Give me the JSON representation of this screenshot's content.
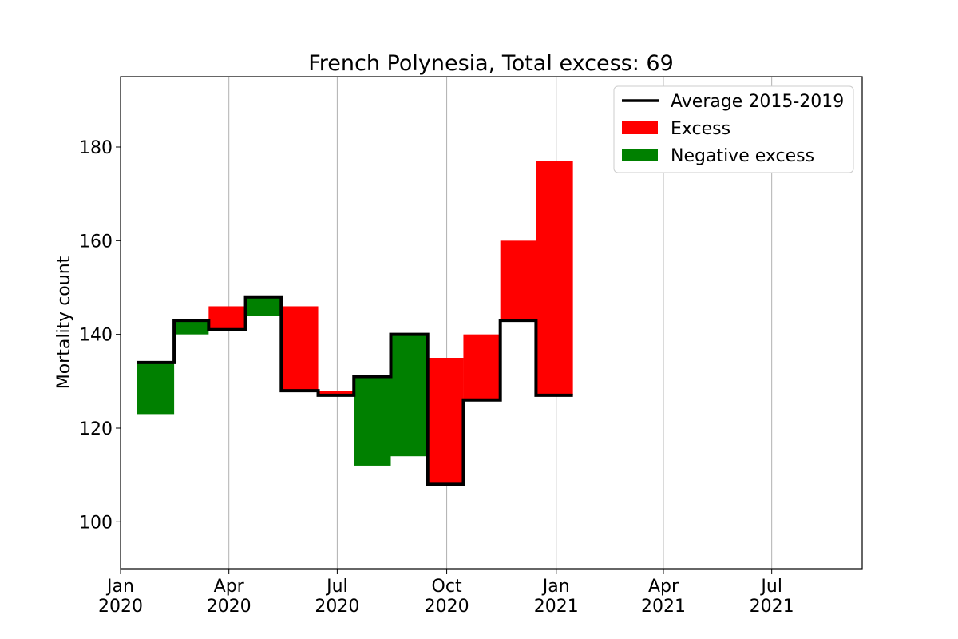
{
  "chart_data": {
    "type": "bar",
    "title": "French Polynesia, Total excess: 69",
    "xlabel": "",
    "ylabel": "Mortality count",
    "x_axis": "monthly, dates",
    "ylim": [
      90,
      195
    ],
    "xlim": [
      "2020-01-01",
      "2021-09-15"
    ],
    "grid": "vertical only (x)",
    "legend_position": "top-right",
    "x_ticks": [
      {
        "date": "2020-01-01",
        "label": [
          "Jan",
          "2020"
        ]
      },
      {
        "date": "2020-04-01",
        "label": [
          "Apr",
          "2020"
        ]
      },
      {
        "date": "2020-07-01",
        "label": [
          "Jul",
          "2020"
        ]
      },
      {
        "date": "2020-10-01",
        "label": [
          "Oct",
          "2020"
        ]
      },
      {
        "date": "2021-01-01",
        "label": [
          "Jan",
          "2021"
        ]
      },
      {
        "date": "2021-04-01",
        "label": [
          "Apr",
          "2021"
        ]
      },
      {
        "date": "2021-07-01",
        "label": [
          "Jul",
          "2021"
        ]
      }
    ],
    "y_ticks": [
      100,
      120,
      140,
      160,
      180
    ],
    "months": [
      "2020-01",
      "2020-02",
      "2020-03",
      "2020-04",
      "2020-05",
      "2020-06",
      "2020-07",
      "2020-08",
      "2020-09",
      "2020-10",
      "2020-11",
      "2020-12",
      "2021-01"
    ],
    "series": [
      {
        "name": "Average 2015-2019",
        "kind": "step-line",
        "color": "#000000",
        "values": [
          134,
          143,
          141,
          148,
          128,
          127,
          131,
          140,
          108,
          126,
          143,
          127,
          null
        ]
      },
      {
        "name": "Excess",
        "kind": "bar",
        "color": "#ff0000"
      },
      {
        "name": "Negative excess",
        "kind": "bar",
        "color": "#008000"
      }
    ],
    "actual": [
      123,
      140,
      146,
      144,
      146,
      128,
      112,
      114,
      135,
      140,
      160,
      177,
      null
    ]
  }
}
